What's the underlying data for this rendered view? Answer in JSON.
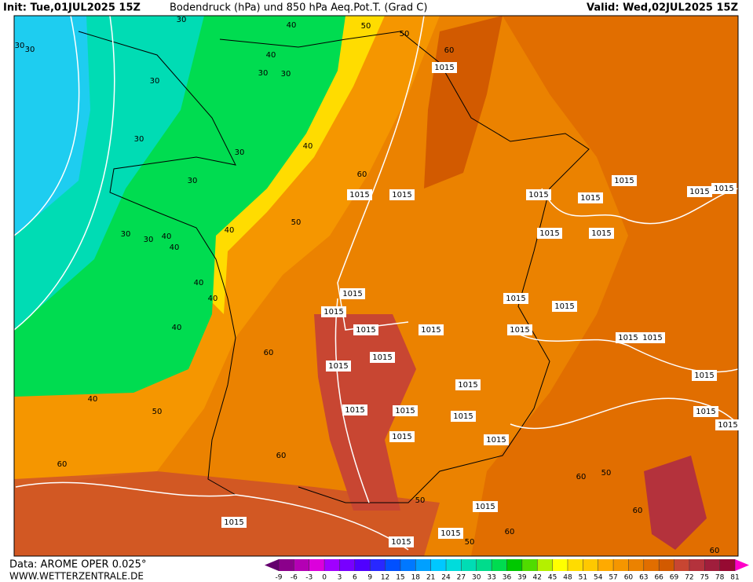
{
  "header": {
    "init": "Init: Tue,01JUL2025 15Z",
    "title": "Bodendruck (hPa) und 850 hPa Aeq.Pot.T. (Grad C)",
    "valid": "Valid: Wed,02JUL2025 15Z"
  },
  "footer": {
    "data": "Data: AROME OPER 0.025°",
    "website": "WWW.WETTERZENTRALE.DE"
  },
  "colorbar": {
    "clim": [
      -9,
      81
    ],
    "ticks": [
      -9,
      -6,
      -3,
      0,
      3,
      6,
      9,
      12,
      15,
      18,
      21,
      24,
      27,
      30,
      33,
      36,
      39,
      42,
      45,
      48,
      51,
      54,
      57,
      60,
      63,
      66,
      69,
      72,
      75,
      78,
      81
    ],
    "colors": [
      "#8b008b",
      "#b400b4",
      "#dc00dc",
      "#a000ff",
      "#7800ff",
      "#5000ff",
      "#2828ff",
      "#0050ff",
      "#0078ff",
      "#00a0ff",
      "#00c8ff",
      "#00dcdc",
      "#00dcb4",
      "#00dc8c",
      "#00dc50",
      "#00c800",
      "#50dc00",
      "#b4f000",
      "#ffff00",
      "#ffdc00",
      "#ffc800",
      "#ffaa00",
      "#f59600",
      "#eb8200",
      "#e16e00",
      "#d25a00",
      "#c84632",
      "#b4323c",
      "#a01e3c",
      "#960a32"
    ],
    "under_color": "#64006e",
    "over_color": "#ff00c8"
  },
  "contour_labels": [
    "1015",
    "1015",
    "1015",
    "1015",
    "1015",
    "1015",
    "1015",
    "1015",
    "1015",
    "1015",
    "1015",
    "1015",
    "1015",
    "1015",
    "1015",
    "1015",
    "1015",
    "1015",
    "1015",
    "1015",
    "1015",
    "1015",
    "1015",
    "1015",
    "1015",
    "1015",
    "1015",
    "1015",
    "1015",
    "1015",
    "1015",
    "1015",
    "1015",
    "1015",
    "30",
    "30",
    "30",
    "30",
    "30",
    "30",
    "30",
    "30",
    "30",
    "30",
    "30",
    "40",
    "40",
    "40",
    "40",
    "40",
    "40",
    "40",
    "40",
    "40",
    "40",
    "50",
    "50",
    "50",
    "50",
    "50",
    "50",
    "50",
    "60",
    "60",
    "60",
    "60",
    "60",
    "60",
    "60",
    "60",
    "60"
  ]
}
